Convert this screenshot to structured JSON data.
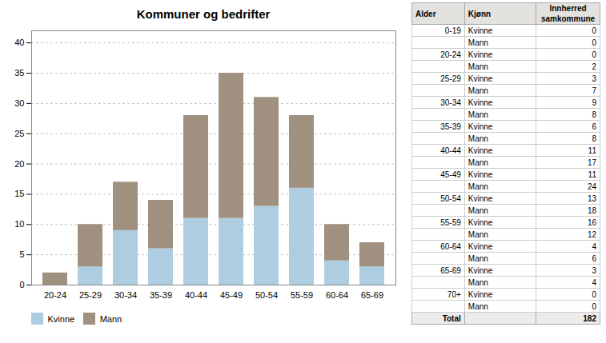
{
  "chart_data": [
    {
      "type": "bar",
      "title": "Kommuner og bedrifter",
      "categories": [
        "20-24",
        "25-29",
        "30-34",
        "35-39",
        "40-44",
        "45-49",
        "50-54",
        "55-59",
        "60-64",
        "65-69"
      ],
      "series": [
        {
          "name": "Kvinne",
          "color": "#aecde1",
          "values": [
            0,
            3,
            9,
            6,
            11,
            11,
            13,
            16,
            4,
            3
          ]
        },
        {
          "name": "Mann",
          "color": "#a09080",
          "values": [
            2,
            7,
            8,
            8,
            17,
            24,
            18,
            12,
            6,
            4
          ]
        }
      ],
      "stacked": true,
      "ylim": [
        0,
        42
      ],
      "yticks": [
        0,
        5,
        10,
        15,
        20,
        25,
        30,
        35,
        40
      ],
      "grid": true,
      "legend": "bottom"
    },
    {
      "type": "table",
      "columns": [
        "Alder",
        "Kjønn",
        "Innherred\nsamkommune"
      ],
      "rows": [
        [
          "0-19",
          "Kvinne",
          0
        ],
        [
          null,
          "Mann",
          0
        ],
        [
          "20-24",
          "Kvinne",
          0
        ],
        [
          null,
          "Mann",
          2
        ],
        [
          "25-29",
          "Kvinne",
          3
        ],
        [
          null,
          "Mann",
          7
        ],
        [
          "30-34",
          "Kvinne",
          9
        ],
        [
          null,
          "Mann",
          8
        ],
        [
          "35-39",
          "Kvinne",
          6
        ],
        [
          null,
          "Mann",
          8
        ],
        [
          "40-44",
          "Kvinne",
          11
        ],
        [
          null,
          "Mann",
          17
        ],
        [
          "45-49",
          "Kvinne",
          11
        ],
        [
          null,
          "Mann",
          24
        ],
        [
          "50-54",
          "Kvinne",
          13
        ],
        [
          null,
          "Mann",
          18
        ],
        [
          "55-59",
          "Kvinne",
          16
        ],
        [
          null,
          "Mann",
          12
        ],
        [
          "60-64",
          "Kvinne",
          4
        ],
        [
          null,
          "Mann",
          6
        ],
        [
          "65-69",
          "Kvinne",
          3
        ],
        [
          null,
          "Mann",
          4
        ],
        [
          "70+",
          "Kvinne",
          0
        ],
        [
          null,
          "Mann",
          0
        ]
      ],
      "total": [
        "Total",
        null,
        182
      ]
    }
  ]
}
